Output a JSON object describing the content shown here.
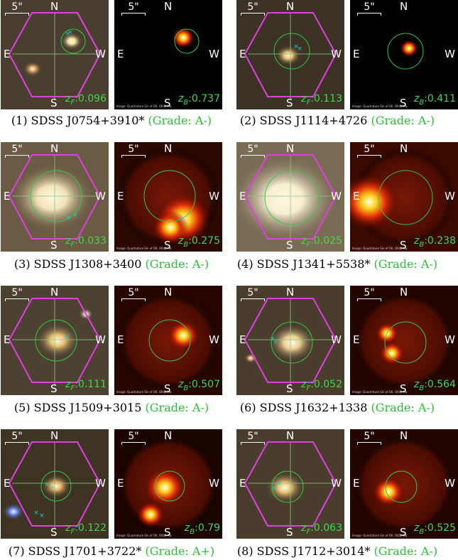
{
  "common": {
    "scale_label": "5\"",
    "north": "N",
    "south": "S",
    "east": "E",
    "west": "W",
    "credit_text": "Image: Quadrature Sin of OII, OIIIb, Hα",
    "zf_prefix": "z",
    "zf_sub": "F",
    "zb_sub": "B",
    "colors": {
      "hexagon": "#e040e0",
      "circle": "#2ecc40",
      "marker": "#20c8d0",
      "redshift": "#3fd94a",
      "grade": "#2bbf36"
    }
  },
  "panels": [
    {
      "number": "(1)",
      "name": "SDSS J0754+3910*",
      "grade": "(Grade: A-)",
      "zf": ":0.096",
      "zb": ":0.737"
    },
    {
      "number": "(2)",
      "name": "SDSS J1114+4726",
      "grade": "(Grade: A-)",
      "zf": ":0.113",
      "zb": ":0.411"
    },
    {
      "number": "(3)",
      "name": "SDSS J1308+3400",
      "grade": "(Grade: A-)",
      "zf": ":0.033",
      "zb": ":0.275"
    },
    {
      "number": "(4)",
      "name": "SDSS J1341+5538*",
      "grade": "(Grade: A-)",
      "zf": ":0.025",
      "zb": ":0.238"
    },
    {
      "number": "(5)",
      "name": "SDSS J1509+3015",
      "grade": "(Grade: A-)",
      "zf": ":0.111",
      "zb": ":0.507"
    },
    {
      "number": "(6)",
      "name": "SDSS J1632+1338",
      "grade": "(Grade: A-)",
      "zf": ":0.052",
      "zb": ":0.564"
    },
    {
      "number": "(7)",
      "name": "SDSS J1701+3722*",
      "grade": "(Grade: A+)",
      "zf": ":0.122",
      "zb": ":0.79"
    },
    {
      "number": "(8)",
      "name": "SDSS J1712+3014*",
      "grade": "(Grade: A-)",
      "zf": ":0.063",
      "zb": ":0.525"
    }
  ]
}
